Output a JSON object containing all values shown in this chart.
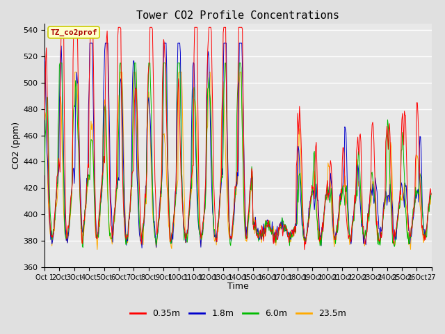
{
  "title": "Tower CO2 Profile Concentrations",
  "xlabel": "Time",
  "ylabel": "CO2 (ppm)",
  "ylim": [
    360,
    545
  ],
  "yticks": [
    360,
    380,
    400,
    420,
    440,
    460,
    480,
    500,
    520,
    540
  ],
  "x_labels": [
    "Oct 1",
    "2Oct",
    "3Oct",
    "4Oct",
    "5Oct",
    "6Oct",
    "7Oct",
    "8Oct",
    "9Oct",
    "10Oct",
    "11Oct",
    "12Oct",
    "13Oct",
    "14Oct",
    "15Oct",
    "16Oct",
    "17Oct",
    "18Oct",
    "19Oct",
    "20Oct",
    "21Oct",
    "22Oct",
    "23Oct",
    "24Oct",
    "25Oct",
    "26Oct",
    "27"
  ],
  "legend_labels": [
    "0.35m",
    "1.8m",
    "6.0m",
    "23.5m"
  ],
  "legend_colors": [
    "#ff0000",
    "#0000cc",
    "#00bb00",
    "#ffaa00"
  ],
  "watermark_text": "TZ_co2prof",
  "watermark_fg": "#aa0000",
  "watermark_bg": "#ffffcc",
  "watermark_border": "#cccc00",
  "fig_bg": "#e0e0e0",
  "plot_bg": "#e8e8e8",
  "grid_color": "#ffffff",
  "n_days": 26,
  "pts_per_day": 24,
  "random_seed": 7
}
